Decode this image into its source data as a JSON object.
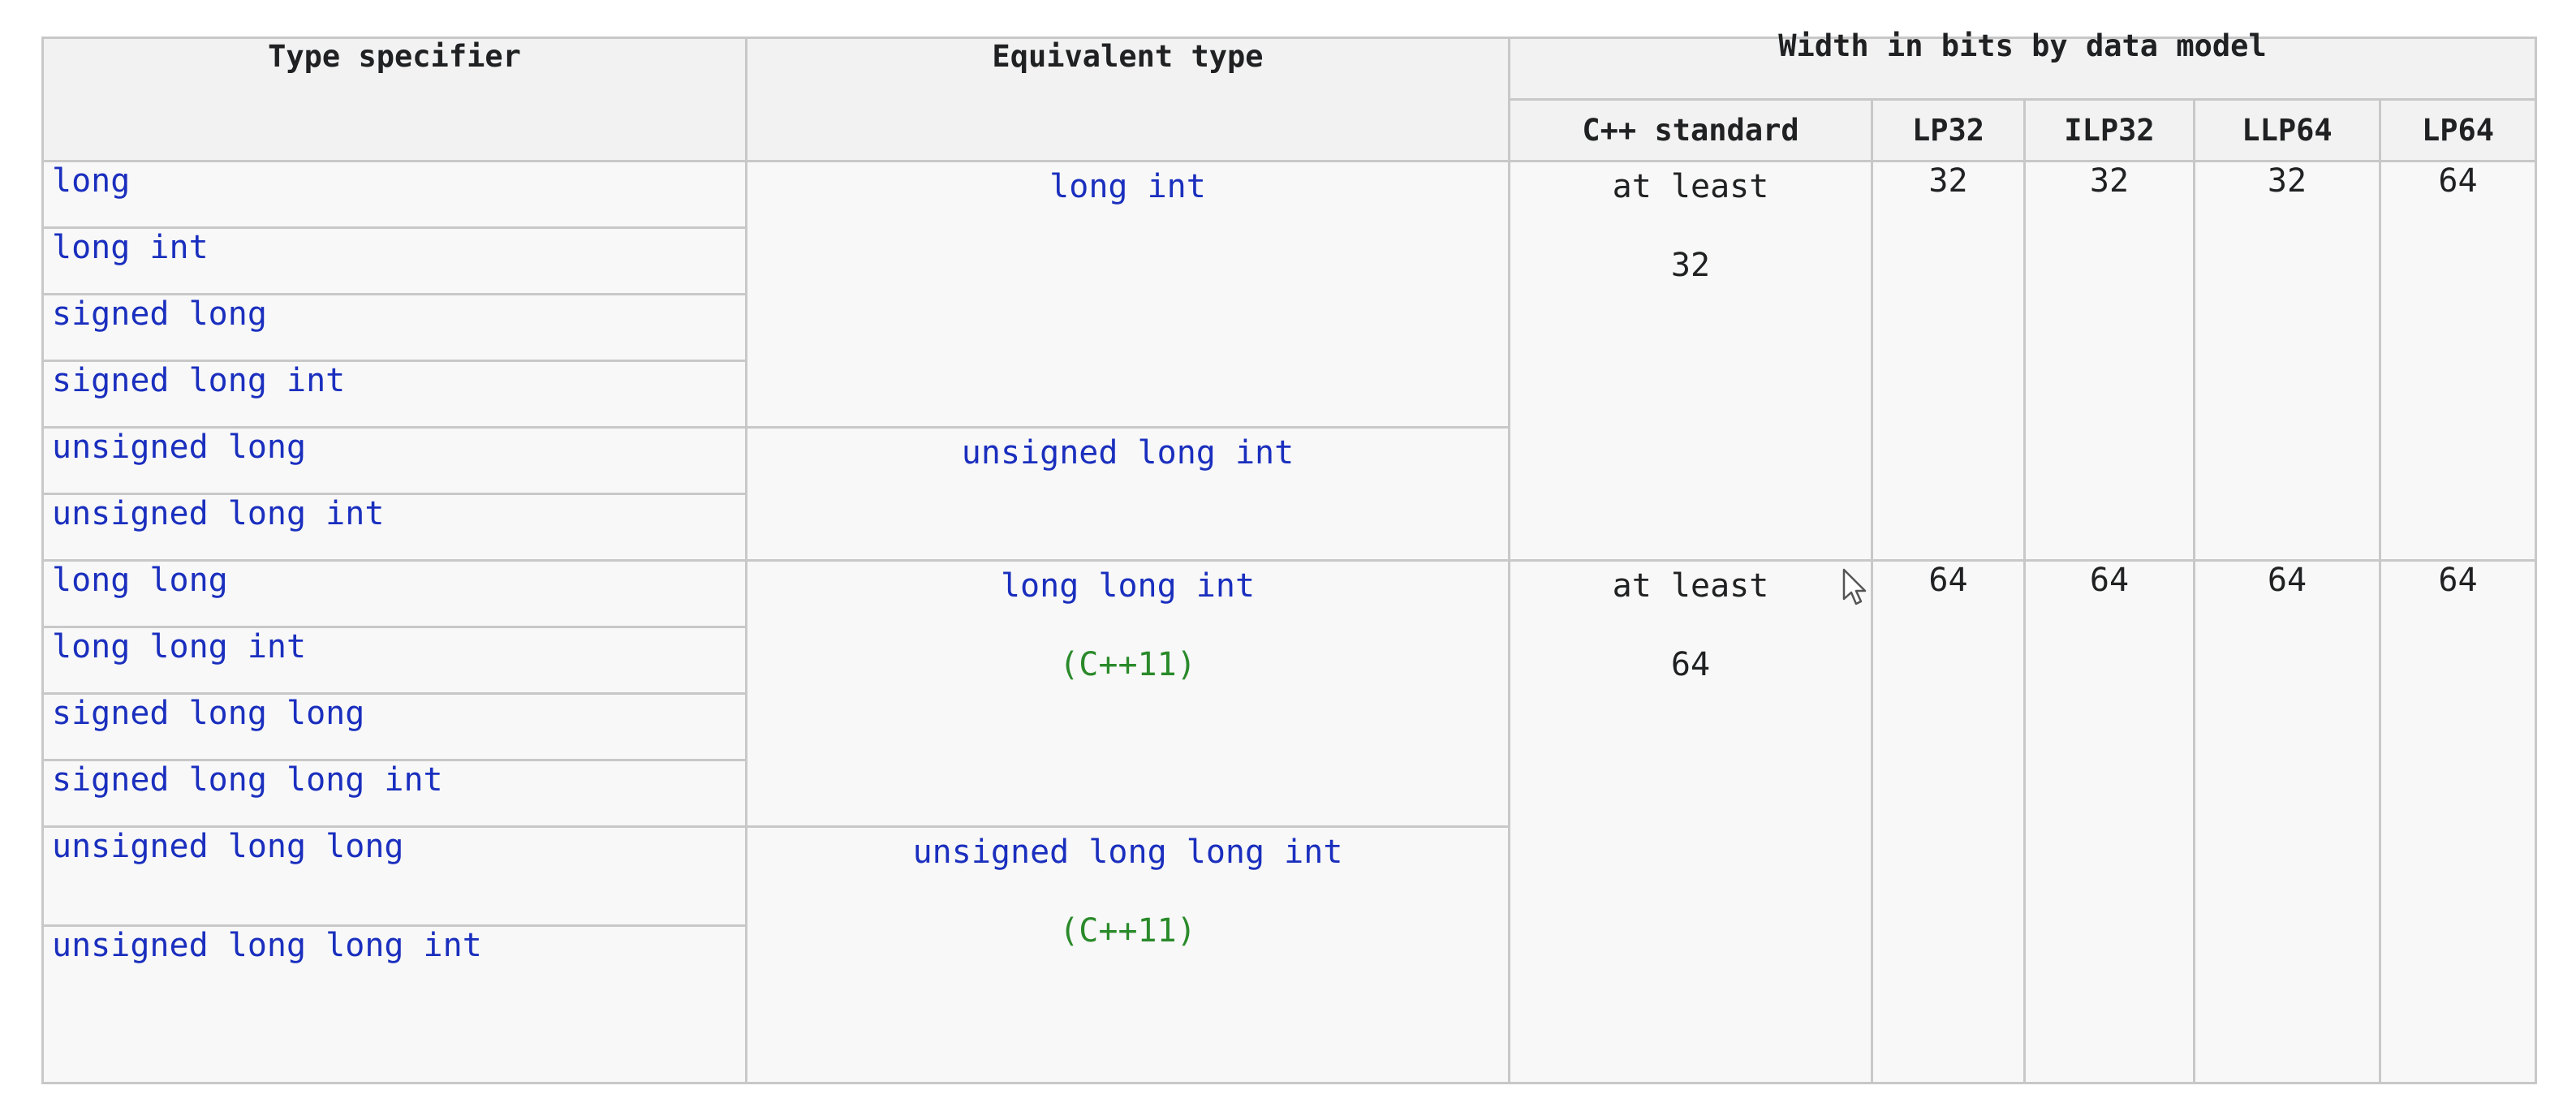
{
  "headers": {
    "type_specifier": "Type specifier",
    "equivalent_type": "Equivalent type",
    "width_group": "Width in bits by data model",
    "cpp_standard": "C++ standard",
    "lp32": "LP32",
    "ilp32": "ILP32",
    "llp64": "LLP64",
    "lp64": "LP64"
  },
  "group1": {
    "specifiers": [
      "long",
      "long int",
      "signed long",
      "signed long int",
      "unsigned long",
      "unsigned long int"
    ],
    "equiv_signed": "long int",
    "equiv_unsigned": "unsigned long int",
    "std_line1": "at least",
    "std_line2": "32",
    "lp32": "32",
    "ilp32": "32",
    "llp64": "32",
    "lp64": "64"
  },
  "group2": {
    "specifiers": [
      "long long",
      "long long int",
      "signed long long",
      "signed long long int",
      "unsigned long long",
      "unsigned long long int"
    ],
    "equiv_signed": "long long int",
    "equiv_signed_ver": "(C++11)",
    "equiv_unsigned": "unsigned long long int",
    "equiv_unsigned_ver": "(C++11)",
    "std_line1": "at least",
    "std_line2": "64",
    "lp32": "64",
    "ilp32": "64",
    "llp64": "64",
    "lp64": "64"
  }
}
